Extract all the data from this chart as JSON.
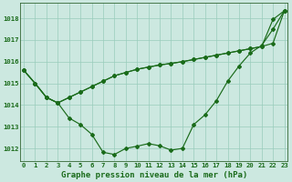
{
  "title": "Graphe pression niveau de la mer (hPa)",
  "bg_color": "#cce8e0",
  "grid_color": "#99ccbb",
  "line_color": "#1a6b1a",
  "x_ticks": [
    0,
    1,
    2,
    3,
    4,
    5,
    6,
    7,
    8,
    9,
    10,
    11,
    12,
    13,
    14,
    15,
    16,
    17,
    18,
    19,
    20,
    21,
    22,
    23
  ],
  "y_ticks": [
    1012,
    1013,
    1014,
    1015,
    1016,
    1017,
    1018
  ],
  "ylim": [
    1011.4,
    1018.7
  ],
  "xlim": [
    -0.3,
    23.3
  ],
  "series1": [
    1015.6,
    1015.0,
    1014.35,
    1014.1,
    1013.4,
    1013.1,
    1012.65,
    1011.82,
    1011.72,
    1012.0,
    1012.1,
    1012.22,
    1012.12,
    1011.92,
    1012.0,
    1013.1,
    1013.55,
    1014.2,
    1015.1,
    1015.8,
    1016.4,
    1016.75,
    1017.5,
    1018.35
  ],
  "series2": [
    1015.6,
    1015.0,
    1014.35,
    1014.1,
    1014.35,
    1014.6,
    1014.85,
    1015.1,
    1015.35,
    1015.5,
    1015.65,
    1015.75,
    1015.85,
    1015.92,
    1016.0,
    1016.1,
    1016.2,
    1016.3,
    1016.4,
    1016.5,
    1016.6,
    1016.7,
    1016.85,
    1018.35
  ],
  "series3": [
    1015.6,
    1015.0,
    1014.35,
    1014.1,
    1014.35,
    1014.6,
    1014.85,
    1015.1,
    1015.35,
    1015.5,
    1015.65,
    1015.75,
    1015.85,
    1015.92,
    1016.0,
    1016.1,
    1016.2,
    1016.3,
    1016.4,
    1016.5,
    1016.6,
    1016.7,
    1017.95,
    1018.35
  ],
  "title_fontsize": 6.5,
  "tick_fontsize": 5.2
}
